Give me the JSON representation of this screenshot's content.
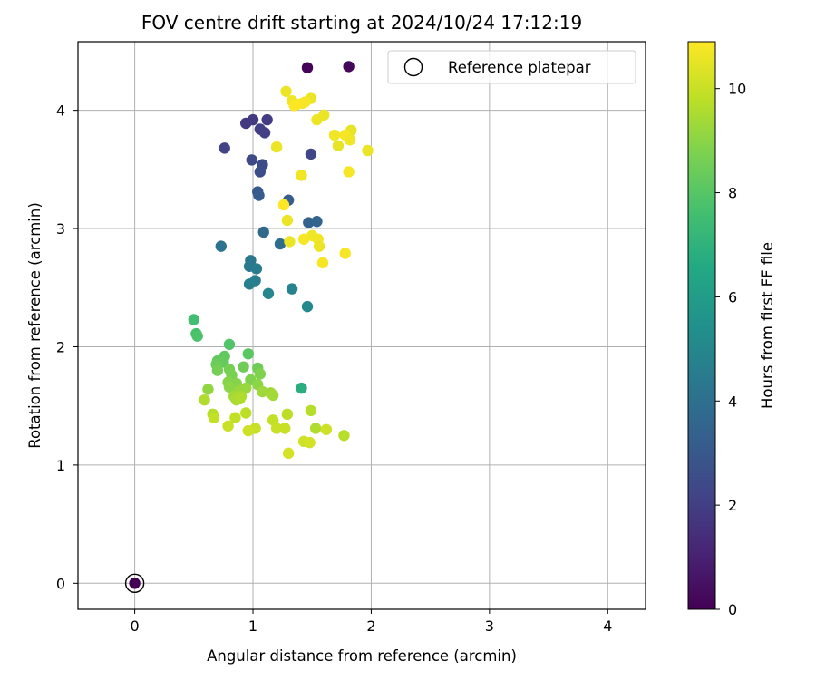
{
  "chart_data": {
    "type": "scatter",
    "title": "FOV centre drift starting at 2024/10/24 17:12:19",
    "xlabel": "Angular distance from reference (arcmin)",
    "ylabel": "Rotation from reference (arcmin)",
    "xlim": [
      -0.48,
      4.32
    ],
    "ylim": [
      -0.22,
      4.58
    ],
    "xticks": [
      0,
      1,
      2,
      3,
      4
    ],
    "yticks": [
      0,
      1,
      2,
      3,
      4
    ],
    "grid": true,
    "legend": {
      "position": "top-right",
      "label": "Reference platepar"
    },
    "colorbar": {
      "label": "Hours from first FF file",
      "colormap": "viridis",
      "range": [
        0,
        10.9
      ],
      "ticks": [
        0,
        2,
        4,
        6,
        8,
        10
      ]
    },
    "reference_point": {
      "x": 0,
      "y": 0,
      "c": 0
    },
    "series": [
      {
        "points": [
          {
            "x": 1.46,
            "y": 4.36,
            "c": 0.1
          },
          {
            "x": 1.81,
            "y": 4.37,
            "c": 0.2
          },
          {
            "x": 0.94,
            "y": 3.89,
            "c": 1.8
          },
          {
            "x": 1.0,
            "y": 3.92,
            "c": 1.8
          },
          {
            "x": 1.12,
            "y": 3.92,
            "c": 1.9
          },
          {
            "x": 1.06,
            "y": 3.84,
            "c": 2.0
          },
          {
            "x": 1.1,
            "y": 3.81,
            "c": 2.0
          },
          {
            "x": 0.76,
            "y": 3.68,
            "c": 2.2
          },
          {
            "x": 1.49,
            "y": 3.63,
            "c": 2.3
          },
          {
            "x": 0.99,
            "y": 3.58,
            "c": 2.4
          },
          {
            "x": 1.08,
            "y": 3.54,
            "c": 2.5
          },
          {
            "x": 1.06,
            "y": 3.48,
            "c": 2.6
          },
          {
            "x": 1.04,
            "y": 3.31,
            "c": 3.0
          },
          {
            "x": 1.05,
            "y": 3.28,
            "c": 3.1
          },
          {
            "x": 1.3,
            "y": 3.24,
            "c": 3.2
          },
          {
            "x": 1.47,
            "y": 3.05,
            "c": 3.4
          },
          {
            "x": 1.54,
            "y": 3.06,
            "c": 3.5
          },
          {
            "x": 1.09,
            "y": 2.97,
            "c": 3.7
          },
          {
            "x": 1.23,
            "y": 2.87,
            "c": 3.9
          },
          {
            "x": 0.73,
            "y": 2.85,
            "c": 4.1
          },
          {
            "x": 0.98,
            "y": 2.73,
            "c": 4.3
          },
          {
            "x": 0.97,
            "y": 2.68,
            "c": 4.4
          },
          {
            "x": 1.03,
            "y": 2.66,
            "c": 4.5
          },
          {
            "x": 1.02,
            "y": 2.56,
            "c": 4.6
          },
          {
            "x": 0.97,
            "y": 2.53,
            "c": 4.7
          },
          {
            "x": 1.33,
            "y": 2.49,
            "c": 4.8
          },
          {
            "x": 1.13,
            "y": 2.45,
            "c": 5.0
          },
          {
            "x": 1.46,
            "y": 2.34,
            "c": 5.1
          },
          {
            "x": 1.41,
            "y": 1.65,
            "c": 6.8
          },
          {
            "x": 0.5,
            "y": 2.23,
            "c": 7.6
          },
          {
            "x": 0.52,
            "y": 2.11,
            "c": 7.7
          },
          {
            "x": 0.53,
            "y": 2.09,
            "c": 7.8
          },
          {
            "x": 0.8,
            "y": 2.02,
            "c": 7.9
          },
          {
            "x": 0.96,
            "y": 1.94,
            "c": 8.1
          },
          {
            "x": 0.76,
            "y": 1.92,
            "c": 8.2
          },
          {
            "x": 0.7,
            "y": 1.88,
            "c": 8.2
          },
          {
            "x": 0.75,
            "y": 1.87,
            "c": 8.3
          },
          {
            "x": 0.69,
            "y": 1.85,
            "c": 8.4
          },
          {
            "x": 1.04,
            "y": 1.82,
            "c": 8.5
          },
          {
            "x": 0.92,
            "y": 1.83,
            "c": 8.5
          },
          {
            "x": 0.7,
            "y": 1.8,
            "c": 8.6
          },
          {
            "x": 0.8,
            "y": 1.81,
            "c": 8.6
          },
          {
            "x": 0.82,
            "y": 1.76,
            "c": 8.7
          },
          {
            "x": 1.06,
            "y": 1.77,
            "c": 8.8
          },
          {
            "x": 0.98,
            "y": 1.72,
            "c": 8.8
          },
          {
            "x": 0.79,
            "y": 1.7,
            "c": 8.9
          },
          {
            "x": 0.86,
            "y": 1.69,
            "c": 8.9
          },
          {
            "x": 1.04,
            "y": 1.68,
            "c": 9.0
          },
          {
            "x": 0.8,
            "y": 1.66,
            "c": 9.0
          },
          {
            "x": 0.62,
            "y": 1.64,
            "c": 9.1
          },
          {
            "x": 0.9,
            "y": 1.64,
            "c": 9.1
          },
          {
            "x": 0.94,
            "y": 1.65,
            "c": 9.2
          },
          {
            "x": 0.88,
            "y": 1.62,
            "c": 9.2
          },
          {
            "x": 1.08,
            "y": 1.62,
            "c": 9.3
          },
          {
            "x": 1.15,
            "y": 1.61,
            "c": 9.3
          },
          {
            "x": 1.17,
            "y": 1.59,
            "c": 9.4
          },
          {
            "x": 0.84,
            "y": 1.58,
            "c": 9.4
          },
          {
            "x": 0.9,
            "y": 1.58,
            "c": 9.5
          },
          {
            "x": 0.86,
            "y": 1.55,
            "c": 9.5
          },
          {
            "x": 0.89,
            "y": 1.56,
            "c": 9.6
          },
          {
            "x": 0.59,
            "y": 1.55,
            "c": 9.6
          },
          {
            "x": 1.49,
            "y": 1.46,
            "c": 9.7
          },
          {
            "x": 0.66,
            "y": 1.43,
            "c": 9.7
          },
          {
            "x": 0.94,
            "y": 1.44,
            "c": 9.8
          },
          {
            "x": 1.29,
            "y": 1.43,
            "c": 9.8
          },
          {
            "x": 0.67,
            "y": 1.4,
            "c": 9.9
          },
          {
            "x": 0.85,
            "y": 1.4,
            "c": 9.9
          },
          {
            "x": 1.17,
            "y": 1.38,
            "c": 9.9
          },
          {
            "x": 0.79,
            "y": 1.33,
            "c": 10.0
          },
          {
            "x": 1.02,
            "y": 1.31,
            "c": 10.0
          },
          {
            "x": 1.2,
            "y": 1.31,
            "c": 10.0
          },
          {
            "x": 1.27,
            "y": 1.31,
            "c": 10.0
          },
          {
            "x": 1.53,
            "y": 1.31,
            "c": 9.6
          },
          {
            "x": 1.62,
            "y": 1.3,
            "c": 10.1
          },
          {
            "x": 0.96,
            "y": 1.29,
            "c": 10.1
          },
          {
            "x": 1.77,
            "y": 1.25,
            "c": 9.7
          },
          {
            "x": 1.43,
            "y": 1.2,
            "c": 10.1
          },
          {
            "x": 1.48,
            "y": 1.19,
            "c": 10.2
          },
          {
            "x": 1.3,
            "y": 1.1,
            "c": 10.2
          },
          {
            "x": 1.28,
            "y": 4.16,
            "c": 10.6
          },
          {
            "x": 1.49,
            "y": 4.1,
            "c": 10.6
          },
          {
            "x": 1.33,
            "y": 4.08,
            "c": 10.7
          },
          {
            "x": 1.37,
            "y": 4.05,
            "c": 10.7
          },
          {
            "x": 1.42,
            "y": 4.06,
            "c": 10.8
          },
          {
            "x": 1.44,
            "y": 4.07,
            "c": 10.8
          },
          {
            "x": 1.35,
            "y": 4.04,
            "c": 10.9
          },
          {
            "x": 1.6,
            "y": 3.96,
            "c": 10.6
          },
          {
            "x": 1.54,
            "y": 3.92,
            "c": 10.6
          },
          {
            "x": 1.83,
            "y": 3.83,
            "c": 10.5
          },
          {
            "x": 1.69,
            "y": 3.79,
            "c": 10.7
          },
          {
            "x": 1.78,
            "y": 3.79,
            "c": 10.8
          },
          {
            "x": 1.82,
            "y": 3.75,
            "c": 10.7
          },
          {
            "x": 1.72,
            "y": 3.7,
            "c": 10.5
          },
          {
            "x": 1.2,
            "y": 3.69,
            "c": 10.6
          },
          {
            "x": 1.97,
            "y": 3.66,
            "c": 10.6
          },
          {
            "x": 1.81,
            "y": 3.48,
            "c": 10.8
          },
          {
            "x": 1.41,
            "y": 3.45,
            "c": 10.7
          },
          {
            "x": 1.26,
            "y": 3.2,
            "c": 10.9
          },
          {
            "x": 1.29,
            "y": 3.07,
            "c": 10.6
          },
          {
            "x": 1.5,
            "y": 2.94,
            "c": 10.7
          },
          {
            "x": 1.43,
            "y": 2.91,
            "c": 10.8
          },
          {
            "x": 1.31,
            "y": 2.89,
            "c": 10.6
          },
          {
            "x": 1.55,
            "y": 2.91,
            "c": 10.7
          },
          {
            "x": 1.56,
            "y": 2.85,
            "c": 10.6
          },
          {
            "x": 1.78,
            "y": 2.79,
            "c": 10.8
          },
          {
            "x": 1.59,
            "y": 2.71,
            "c": 10.8
          }
        ]
      }
    ]
  }
}
